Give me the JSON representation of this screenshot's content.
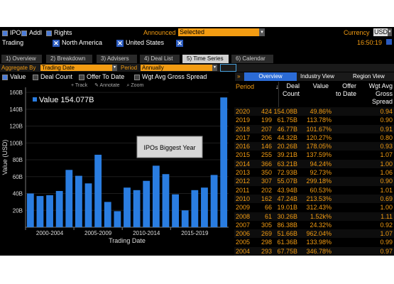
{
  "header": {
    "ipo_label": "IPO",
    "addl_label": "Addl",
    "rights_label": "Rights",
    "announced_label": "Announced",
    "announced_value": "Selected",
    "currency_label": "Currency",
    "currency_value": "USD"
  },
  "filters": {
    "trading_label": "Trading",
    "region": "North America",
    "country": "United States",
    "time": "16:50:19"
  },
  "tabs": [
    {
      "num": "1)",
      "label": "Overview"
    },
    {
      "num": "2)",
      "label": "Breakdown"
    },
    {
      "num": "3)",
      "label": "Advisers"
    },
    {
      "num": "4)",
      "label": "Deal List"
    },
    {
      "num": "5)",
      "label": "Time Series"
    },
    {
      "num": "6)",
      "label": "Calendar"
    }
  ],
  "aggregate": {
    "label": "Aggregate By",
    "value": "Trading Date",
    "period_label": "Period",
    "period_value": "Annually"
  },
  "series_toggles": {
    "value": "Value",
    "deal_count": "Deal Count",
    "offer_to_date": "Offer To Date",
    "wgt_avg": "Wgt Avg Gross Spread"
  },
  "chart_tools": {
    "track": "Track",
    "annotate": "Annotate",
    "zoom": "Zoom"
  },
  "right_tabs": {
    "arrow": "»",
    "overview": "Overview",
    "industry": "Industry View",
    "region": "Region View"
  },
  "table": {
    "headers": {
      "period": "Period",
      "deal_count_1": "Deal",
      "deal_count_2": "Count",
      "value": "Value",
      "offer_1": "Offer",
      "offer_2": "to Date",
      "wgt_1": "Wgt Avg",
      "wgt_2": "Gross",
      "wgt_3": "Spread"
    },
    "rows": [
      {
        "period": "2020",
        "count": "424",
        "value": "154.08B",
        "offer": "49.86%",
        "wgt": "0.94"
      },
      {
        "period": "2019",
        "count": "199",
        "value": "61.75B",
        "offer": "113.78%",
        "wgt": "0.90"
      },
      {
        "period": "2018",
        "count": "207",
        "value": "46.77B",
        "offer": "101.67%",
        "wgt": "0.91"
      },
      {
        "period": "2017",
        "count": "206",
        "value": "44.32B",
        "offer": "120.27%",
        "wgt": "0.80"
      },
      {
        "period": "2016",
        "count": "146",
        "value": "20.26B",
        "offer": "178.05%",
        "wgt": "0.93"
      },
      {
        "period": "2015",
        "count": "255",
        "value": "39.21B",
        "offer": "137.59%",
        "wgt": "1.07"
      },
      {
        "period": "2014",
        "count": "366",
        "value": "63.21B",
        "offer": "94.24%",
        "wgt": "1.00"
      },
      {
        "period": "2013",
        "count": "350",
        "value": "72.93B",
        "offer": "92.73%",
        "wgt": "1.06"
      },
      {
        "period": "2012",
        "count": "307",
        "value": "55.07B",
        "offer": "299.18%",
        "wgt": "0.90"
      },
      {
        "period": "2011",
        "count": "202",
        "value": "43.94B",
        "offer": "60.53%",
        "wgt": "1.01"
      },
      {
        "period": "2010",
        "count": "162",
        "value": "47.24B",
        "offer": "213.53%",
        "wgt": "0.69"
      },
      {
        "period": "2009",
        "count": "66",
        "value": "19.01B",
        "offer": "312.43%",
        "wgt": "1.00"
      },
      {
        "period": "2008",
        "count": "61",
        "value": "30.26B",
        "offer": "1.52k%",
        "wgt": "1.11"
      },
      {
        "period": "2007",
        "count": "305",
        "value": "86.38B",
        "offer": "24.32%",
        "wgt": "0.92"
      },
      {
        "period": "2006",
        "count": "269",
        "value": "51.66B",
        "offer": "962.04%",
        "wgt": "1.07"
      },
      {
        "period": "2005",
        "count": "298",
        "value": "61.36B",
        "offer": "133.98%",
        "wgt": "0.99"
      },
      {
        "period": "2004",
        "count": "293",
        "value": "67.75B",
        "offer": "346.78%",
        "wgt": "0.97"
      }
    ]
  },
  "chart_data": {
    "type": "bar",
    "legend": "Value 154.077B",
    "annotation": "IPOs Biggest Year",
    "xlabel": "Trading Date",
    "ylabel": "Value (USD)",
    "ylim": [
      0,
      166
    ],
    "yticks": [
      "20B",
      "40B",
      "60B",
      "80B",
      "100B",
      "120B",
      "140B",
      "160B"
    ],
    "ytick_values": [
      20,
      40,
      60,
      80,
      100,
      120,
      140,
      160
    ],
    "xgroups": [
      "2000-2004",
      "2005-2009",
      "2010-2014",
      "2015-2019"
    ],
    "categories": [
      "2000",
      "2001",
      "2002",
      "2003",
      "2004",
      "2005",
      "2006",
      "2007",
      "2008",
      "2009",
      "2010",
      "2011",
      "2012",
      "2013",
      "2014",
      "2015",
      "2016",
      "2017",
      "2018",
      "2019",
      "2020"
    ],
    "values": [
      40,
      37,
      38,
      43,
      68,
      61,
      52,
      86,
      30,
      19,
      47,
      44,
      55,
      73,
      63,
      39,
      20,
      44,
      47,
      62,
      154
    ],
    "bar_color": "#2a7de1"
  }
}
